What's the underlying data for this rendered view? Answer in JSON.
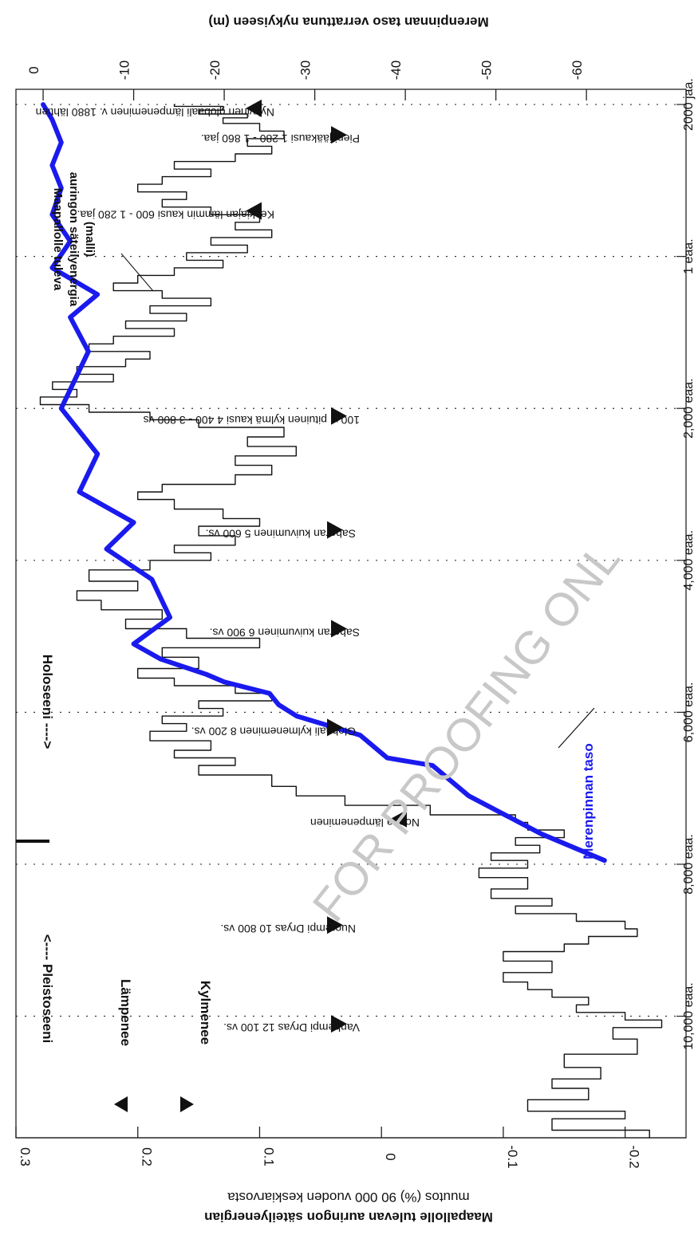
{
  "chart_data": {
    "type": "line",
    "title": "",
    "left_axis": {
      "label_line1": "Maapallolle tulevan auringon säteilyenergian",
      "label_line2": "muutos (%) 90 000 vuoden keskiarvosta",
      "ticks": [
        0.3,
        0.2,
        0.1,
        0,
        -0.1,
        -0.2
      ],
      "tick_labels": [
        "0.3",
        "0.2",
        "0.1",
        "0",
        "-0.1",
        "-0.2"
      ],
      "range": [
        -0.25,
        0.3
      ]
    },
    "right_axis": {
      "label": "Merenpinnan taso verrattuna nykyiseen (m)",
      "ticks": [
        0,
        -10,
        -20,
        -30,
        -40,
        -50,
        -60
      ],
      "tick_labels": [
        "0",
        "-10",
        "-20",
        "-30",
        "-40",
        "-50",
        "-60"
      ],
      "range": [
        -71,
        3
      ]
    },
    "time_axis": {
      "tick_labels": [
        "10,000 eaa.",
        "8,000 eaa.",
        "6,000 eaa.",
        "4,000 eaa.",
        "2,000 eaa.",
        "1 eaa.",
        "2000 jaa."
      ],
      "tick_years": [
        -10000,
        -8000,
        -6000,
        -4000,
        -2000,
        0,
        2000
      ],
      "range": [
        -11600,
        2200
      ]
    },
    "periods": {
      "pleistocene": "<---- Pleistoseeni",
      "holocene": "Holoseeni ---->",
      "boundary_year": -7600
    },
    "legend": {
      "warming": "Lämpenee",
      "cooling": "Kylmenee",
      "sea_level": "Merenpinnan taso",
      "solar_model": "Maapallolle tuleva auringon säteilyenergia (malli)"
    },
    "events": [
      {
        "label": "Vanhempi Dryas 12 100 vs.",
        "year": -10100,
        "type": "cooling"
      },
      {
        "label": "Nuorempi Dryas 10 800 vs.",
        "year": -8800,
        "type": "cooling"
      },
      {
        "label": "Nopea lämpeneminen",
        "year": -7400,
        "type": "warming"
      },
      {
        "label": "Globaali kylmeneminen 8 200 vs.",
        "year": -6200,
        "type": "cooling"
      },
      {
        "label": "Saharan kuivuminen 6 900 vs.",
        "year": -4900,
        "type": "cooling"
      },
      {
        "label": "Saharan kuivuminen 5 600 vs.",
        "year": -3600,
        "type": "cooling"
      },
      {
        "label": "100 v. pituinen kylmä kausi 4 400 - 3 800 vs",
        "year": -2100,
        "type": "cooling"
      },
      {
        "label": "Keskiajan lämmin kausi 600 - 1 280 jaa.",
        "year": 600,
        "type": "warming"
      },
      {
        "label": "Pieni jääkausi 1 280 - 1 860 jaa.",
        "year": 1600,
        "type": "cooling"
      },
      {
        "label": "Nykyinen globaali lämpeneminen v. 1880 lähtien",
        "year": 1950,
        "type": "warming"
      }
    ],
    "series": [
      {
        "name": "Merenpinnan taso",
        "axis": "right",
        "color": "#1a1aee",
        "points": [
          [
            -7950,
            -62
          ],
          [
            -7600,
            -55
          ],
          [
            -7100,
            -47
          ],
          [
            -6700,
            -43
          ],
          [
            -6600,
            -38
          ],
          [
            -6300,
            -35
          ],
          [
            -6050,
            -28
          ],
          [
            -5900,
            -26
          ],
          [
            -5750,
            -25
          ],
          [
            -5600,
            -20
          ],
          [
            -5500,
            -18
          ],
          [
            -5300,
            -13
          ],
          [
            -5100,
            -10
          ],
          [
            -4750,
            -14
          ],
          [
            -4250,
            -12
          ],
          [
            -3850,
            -7
          ],
          [
            -3500,
            -10
          ],
          [
            -3100,
            -4
          ],
          [
            -2600,
            -6
          ],
          [
            -2000,
            -2
          ],
          [
            -1250,
            -5
          ],
          [
            -800,
            -3
          ],
          [
            -500,
            -6
          ],
          [
            -150,
            -1
          ],
          [
            200,
            -3
          ],
          [
            550,
            -1
          ],
          [
            900,
            -2
          ],
          [
            1200,
            -1
          ],
          [
            1500,
            -2
          ],
          [
            1800,
            -1
          ],
          [
            2000,
            0
          ]
        ]
      },
      {
        "name": "Maapallolle tuleva auringon säteilyenergia (malli)",
        "axis": "left",
        "color": "#111111",
        "points": [
          [
            -11600,
            -0.22
          ],
          [
            -11400,
            -0.14
          ],
          [
            -11300,
            -0.2
          ],
          [
            -11200,
            -0.12
          ],
          [
            -11000,
            -0.17
          ],
          [
            -10900,
            -0.14
          ],
          [
            -10750,
            -0.18
          ],
          [
            -10600,
            -0.15
          ],
          [
            -10400,
            -0.21
          ],
          [
            -10200,
            -0.19
          ],
          [
            -10100,
            -0.23
          ],
          [
            -10000,
            -0.2
          ],
          [
            -9900,
            -0.16
          ],
          [
            -9800,
            -0.17
          ],
          [
            -9700,
            -0.14
          ],
          [
            -9600,
            -0.12
          ],
          [
            -9500,
            -0.1
          ],
          [
            -9350,
            -0.14
          ],
          [
            -9200,
            -0.1
          ],
          [
            -9100,
            -0.15
          ],
          [
            -9000,
            -0.17
          ],
          [
            -8900,
            -0.21
          ],
          [
            -8800,
            -0.2
          ],
          [
            -8700,
            -0.16
          ],
          [
            -8600,
            -0.11
          ],
          [
            -8500,
            -0.14
          ],
          [
            -8400,
            -0.09
          ],
          [
            -8250,
            -0.12
          ],
          [
            -8100,
            -0.08
          ],
          [
            -8000,
            -0.12
          ],
          [
            -7900,
            -0.09
          ],
          [
            -7800,
            -0.13
          ],
          [
            -7700,
            -0.11
          ],
          [
            -7600,
            -0.15
          ],
          [
            -7500,
            -0.12
          ],
          [
            -7400,
            -0.11
          ],
          [
            -7300,
            -0.04
          ],
          [
            -7150,
            0.03
          ],
          [
            -7050,
            0.07
          ],
          [
            -6900,
            0.09
          ],
          [
            -6750,
            0.15
          ],
          [
            -6650,
            0.12
          ],
          [
            -6550,
            0.17
          ],
          [
            -6450,
            0.14
          ],
          [
            -6300,
            0.19
          ],
          [
            -6200,
            0.16
          ],
          [
            -6100,
            0.18
          ],
          [
            -6000,
            0.13
          ],
          [
            -5900,
            0.15
          ],
          [
            -5800,
            0.09
          ],
          [
            -5700,
            0.12
          ],
          [
            -5600,
            0.17
          ],
          [
            -5500,
            0.2
          ],
          [
            -5350,
            0.15
          ],
          [
            -5200,
            0.18
          ],
          [
            -5100,
            0.1
          ],
          [
            -4950,
            0.16
          ],
          [
            -4850,
            0.21
          ],
          [
            -4700,
            0.18
          ],
          [
            -4600,
            0.23
          ],
          [
            -4450,
            0.25
          ],
          [
            -4350,
            0.2
          ],
          [
            -4200,
            0.24
          ],
          [
            -4050,
            0.19
          ],
          [
            -3950,
            0.14
          ],
          [
            -3850,
            0.17
          ],
          [
            -3750,
            0.12
          ],
          [
            -3600,
            0.15
          ],
          [
            -3500,
            0.1
          ],
          [
            -3400,
            0.13
          ],
          [
            -3250,
            0.17
          ],
          [
            -3150,
            0.2
          ],
          [
            -3050,
            0.18
          ],
          [
            -2950,
            0.12
          ],
          [
            -2800,
            0.09
          ],
          [
            -2700,
            0.12
          ],
          [
            -2550,
            0.07
          ],
          [
            -2450,
            0.11
          ],
          [
            -2300,
            0.08
          ],
          [
            -2200,
            0.15
          ],
          [
            -2100,
            0.19
          ],
          [
            -2000,
            0.24
          ],
          [
            -1900,
            0.28
          ],
          [
            -1800,
            0.25
          ],
          [
            -1700,
            0.27
          ],
          [
            -1600,
            0.22
          ],
          [
            -1500,
            0.25
          ],
          [
            -1400,
            0.21
          ],
          [
            -1300,
            0.19
          ],
          [
            -1200,
            0.24
          ],
          [
            -1100,
            0.22
          ],
          [
            -1000,
            0.17
          ],
          [
            -900,
            0.21
          ],
          [
            -800,
            0.16
          ],
          [
            -700,
            0.19
          ],
          [
            -600,
            0.14
          ],
          [
            -500,
            0.18
          ],
          [
            -400,
            0.22
          ],
          [
            -300,
            0.2
          ],
          [
            -200,
            0.17
          ],
          [
            -100,
            0.13
          ],
          [
            0,
            0.16
          ],
          [
            100,
            0.11
          ],
          [
            200,
            0.14
          ],
          [
            300,
            0.09
          ],
          [
            400,
            0.12
          ],
          [
            500,
            0.1
          ],
          [
            600,
            0.14
          ],
          [
            700,
            0.18
          ],
          [
            800,
            0.16
          ],
          [
            900,
            0.2
          ],
          [
            1000,
            0.18
          ],
          [
            1100,
            0.14
          ],
          [
            1200,
            0.17
          ],
          [
            1300,
            0.12
          ],
          [
            1400,
            0.09
          ],
          [
            1500,
            0.11
          ],
          [
            1600,
            0.08
          ],
          [
            1700,
            0.1
          ],
          [
            1800,
            0.13
          ],
          [
            1850,
            0.11
          ],
          [
            1900,
            0.15
          ],
          [
            1950,
            0.13
          ],
          [
            2000,
            0.17
          ]
        ]
      }
    ],
    "grid": false
  },
  "watermark": "FOR PROOFING ONL"
}
